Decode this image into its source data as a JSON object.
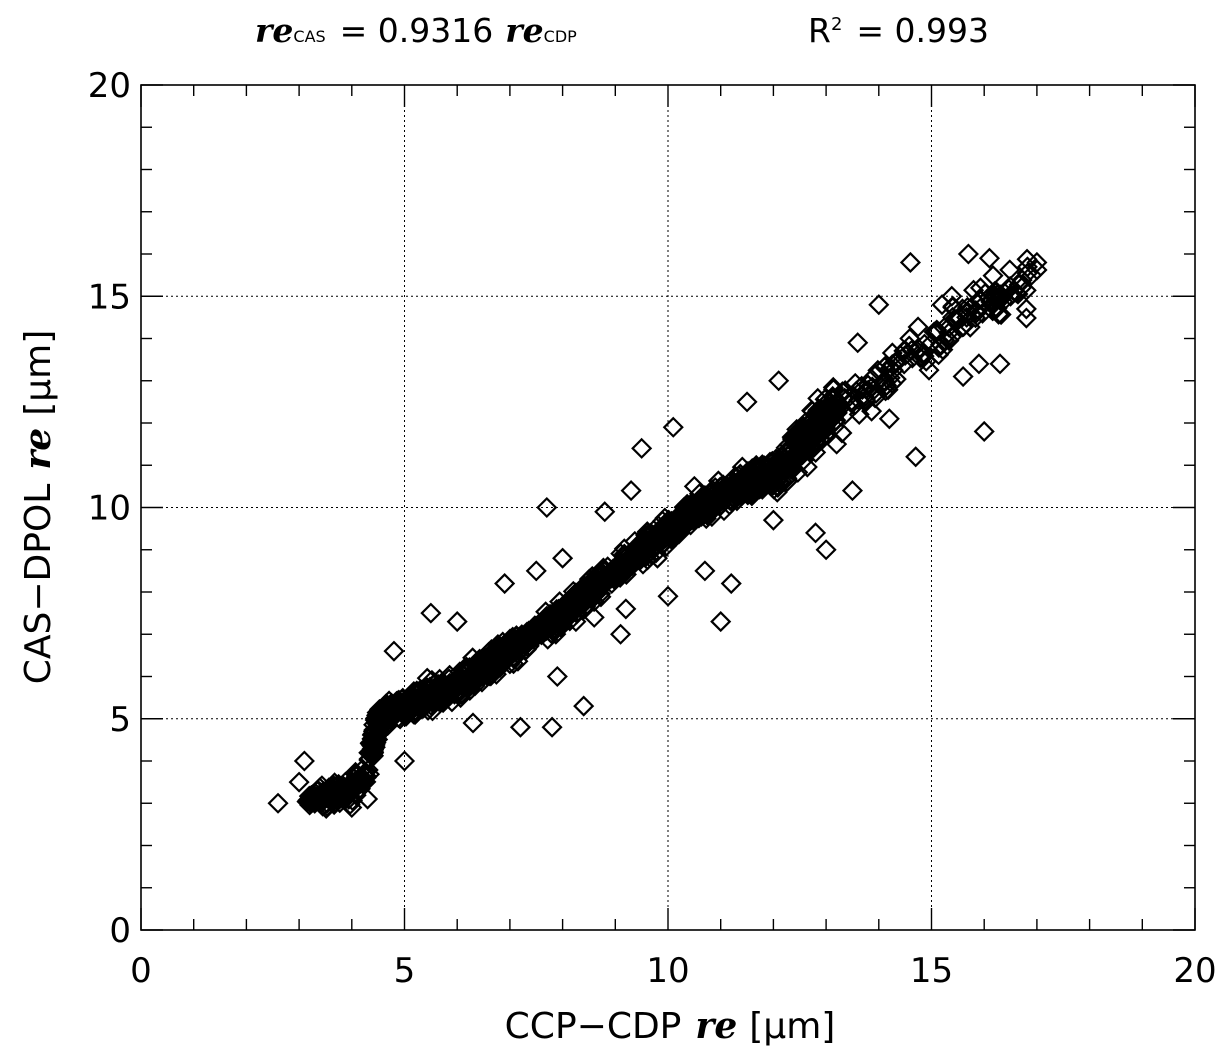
{
  "chart_data": {
    "type": "scatter",
    "title": {
      "fit_lhs_symbol": "re",
      "fit_lhs_sub": "CAS",
      "fit_eq_text": "= 0.9316",
      "fit_rhs_symbol": "re",
      "fit_rhs_sub": "CDP",
      "r2_label": "R",
      "r2_sup": "2",
      "r2_text": "= 0.993"
    },
    "xlabel": {
      "prefix": "CCP−CDP",
      "symbol": "re",
      "unit": "[μm]"
    },
    "ylabel": {
      "prefix": "CAS−DPOL",
      "symbol": "re",
      "unit": "[μm]"
    },
    "xlim": [
      0,
      20
    ],
    "ylim": [
      0,
      20
    ],
    "xticks": [
      "0",
      "5",
      "10",
      "15",
      "20"
    ],
    "yticks": [
      "0",
      "5",
      "10",
      "15",
      "20"
    ],
    "grid": true,
    "marker": "open-diamond",
    "trend": {
      "x": [
        2.6,
        3.5,
        3.8,
        4.0,
        4.3,
        4.5,
        5.0,
        6.0,
        7.0,
        8.0,
        9.0,
        10.0,
        11.0,
        12.0,
        12.5,
        13.0,
        13.5,
        14.0,
        15.0,
        16.0,
        17.0
      ],
      "y": [
        3.0,
        3.2,
        3.2,
        3.3,
        3.7,
        5.0,
        5.3,
        5.8,
        6.6,
        7.5,
        8.5,
        9.5,
        10.3,
        10.8,
        11.4,
        12.2,
        12.6,
        13.0,
        13.9,
        14.8,
        15.5
      ]
    },
    "outliers": {
      "x": [
        2.6,
        3.1,
        3.0,
        4.3,
        5.0,
        5.5,
        6.0,
        6.3,
        7.2,
        7.8,
        7.7,
        8.4,
        7.5,
        8.0,
        9.1,
        9.2,
        9.5,
        10.1,
        10.0,
        11.0,
        11.2,
        12.1,
        12.0,
        12.8,
        13.0,
        13.2,
        13.5,
        13.6,
        14.0,
        14.5,
        14.6,
        14.7,
        15.2,
        15.4,
        15.7,
        15.6,
        16.0,
        16.1,
        16.5,
        16.8,
        16.9,
        17.0,
        7.9,
        10.5,
        11.5,
        8.8,
        6.9,
        9.3,
        12.6,
        14.2,
        11.8,
        10.7,
        15.9,
        3.7,
        4.0,
        4.8,
        5.2,
        5.9,
        7.0,
        8.6,
        9.8,
        12.9,
        14.1,
        15.1,
        16.3
      ],
      "y": [
        3.0,
        4.0,
        3.5,
        3.1,
        4.0,
        7.5,
        7.3,
        4.9,
        4.8,
        4.8,
        10.0,
        5.3,
        8.5,
        8.8,
        7.0,
        7.6,
        11.4,
        11.9,
        7.9,
        7.3,
        8.2,
        13.0,
        9.7,
        9.4,
        9.0,
        11.5,
        10.4,
        13.9,
        14.8,
        13.6,
        15.8,
        11.2,
        14.8,
        14.5,
        16.0,
        13.1,
        11.8,
        15.9,
        15.0,
        14.7,
        15.5,
        15.8,
        6.0,
        10.5,
        12.5,
        9.9,
        8.2,
        10.4,
        12.0,
        12.1,
        11.0,
        8.5,
        13.4,
        3.4,
        2.9,
        6.6,
        5.1,
        5.4,
        6.3,
        7.4,
        8.8,
        11.8,
        13.0,
        14.2,
        13.4
      ]
    }
  }
}
